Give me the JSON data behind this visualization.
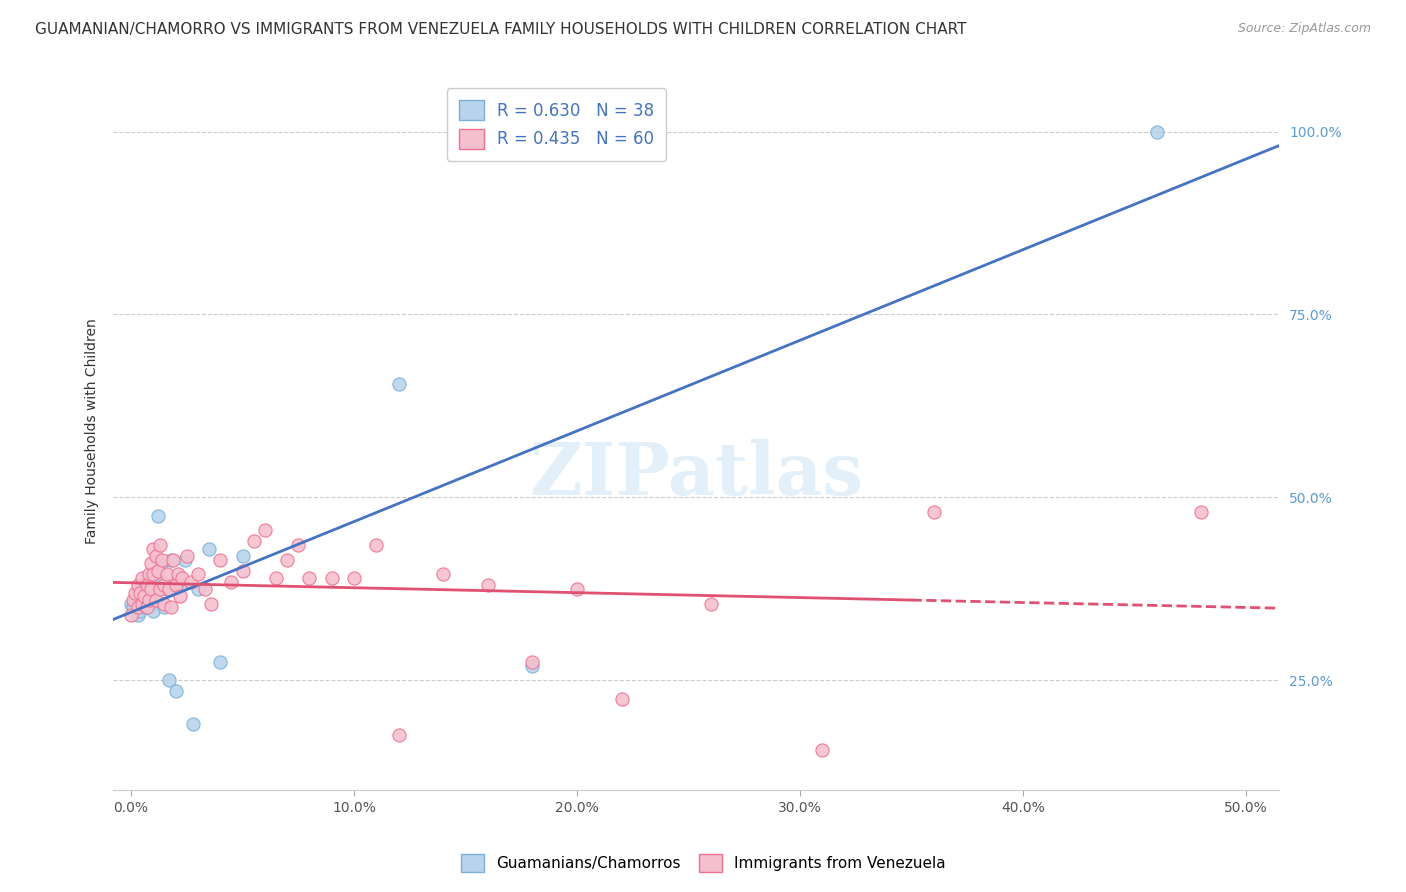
{
  "title": "GUAMANIAN/CHAMORRO VS IMMIGRANTS FROM VENEZUELA FAMILY HOUSEHOLDS WITH CHILDREN CORRELATION CHART",
  "source": "Source: ZipAtlas.com",
  "ylabel": "Family Households with Children",
  "x_ticks": [
    0.0,
    0.1,
    0.2,
    0.3,
    0.4,
    0.5
  ],
  "x_tick_labels": [
    "0.0%",
    "10.0%",
    "20.0%",
    "30.0%",
    "40.0%",
    "50.0%"
  ],
  "y_ticks": [
    0.25,
    0.5,
    0.75,
    1.0
  ],
  "y_tick_labels": [
    "25.0%",
    "50.0%",
    "75.0%",
    "100.0%"
  ],
  "xlim": [
    -0.008,
    0.515
  ],
  "ylim": [
    0.1,
    1.08
  ],
  "blue_color": "#b8d4ec",
  "blue_edge_color": "#7ab0d8",
  "pink_color": "#f5c0ce",
  "pink_edge_color": "#f07090",
  "blue_line_color": "#4472c4",
  "pink_line_color": "#e05070",
  "legend_blue_label": "R = 0.630   N = 38",
  "legend_pink_label": "R = 0.435   N = 60",
  "watermark_text": "ZIPatlas",
  "marker_size": 90,
  "title_fontsize": 11,
  "axis_label_fontsize": 10,
  "tick_fontsize": 10,
  "legend_fontsize": 12,
  "source_fontsize": 9,
  "background_color": "#ffffff",
  "grid_color": "#cccccc",
  "bottom_legend": [
    "Guamanians/Chamorros",
    "Immigrants from Venezuela"
  ],
  "blue_scatter_x": [
    0.0,
    0.001,
    0.002,
    0.003,
    0.003,
    0.004,
    0.004,
    0.005,
    0.005,
    0.006,
    0.006,
    0.007,
    0.007,
    0.008,
    0.008,
    0.009,
    0.009,
    0.01,
    0.01,
    0.011,
    0.012,
    0.013,
    0.014,
    0.015,
    0.016,
    0.017,
    0.018,
    0.02,
    0.022,
    0.024,
    0.028,
    0.03,
    0.035,
    0.04,
    0.05,
    0.12,
    0.18,
    0.46
  ],
  "blue_scatter_y": [
    0.355,
    0.35,
    0.36,
    0.34,
    0.37,
    0.365,
    0.345,
    0.38,
    0.355,
    0.375,
    0.35,
    0.38,
    0.355,
    0.39,
    0.36,
    0.385,
    0.355,
    0.37,
    0.345,
    0.38,
    0.475,
    0.405,
    0.385,
    0.35,
    0.375,
    0.25,
    0.415,
    0.235,
    0.38,
    0.415,
    0.19,
    0.375,
    0.43,
    0.275,
    0.42,
    0.655,
    0.27,
    1.0
  ],
  "pink_scatter_x": [
    0.0,
    0.001,
    0.002,
    0.003,
    0.003,
    0.004,
    0.005,
    0.005,
    0.006,
    0.007,
    0.007,
    0.008,
    0.008,
    0.009,
    0.009,
    0.01,
    0.01,
    0.011,
    0.011,
    0.012,
    0.013,
    0.013,
    0.014,
    0.015,
    0.015,
    0.016,
    0.017,
    0.018,
    0.019,
    0.02,
    0.021,
    0.022,
    0.023,
    0.025,
    0.027,
    0.03,
    0.033,
    0.036,
    0.04,
    0.045,
    0.05,
    0.055,
    0.06,
    0.065,
    0.07,
    0.075,
    0.08,
    0.09,
    0.1,
    0.11,
    0.12,
    0.14,
    0.16,
    0.18,
    0.2,
    0.22,
    0.26,
    0.31,
    0.36,
    0.48
  ],
  "pink_scatter_y": [
    0.34,
    0.36,
    0.37,
    0.35,
    0.38,
    0.37,
    0.39,
    0.355,
    0.365,
    0.38,
    0.35,
    0.395,
    0.36,
    0.41,
    0.375,
    0.43,
    0.395,
    0.42,
    0.36,
    0.4,
    0.435,
    0.375,
    0.415,
    0.38,
    0.355,
    0.395,
    0.375,
    0.35,
    0.415,
    0.38,
    0.395,
    0.365,
    0.39,
    0.42,
    0.385,
    0.395,
    0.375,
    0.355,
    0.415,
    0.385,
    0.4,
    0.44,
    0.455,
    0.39,
    0.415,
    0.435,
    0.39,
    0.39,
    0.39,
    0.435,
    0.175,
    0.395,
    0.38,
    0.275,
    0.375,
    0.225,
    0.355,
    0.155,
    0.48,
    0.48
  ]
}
